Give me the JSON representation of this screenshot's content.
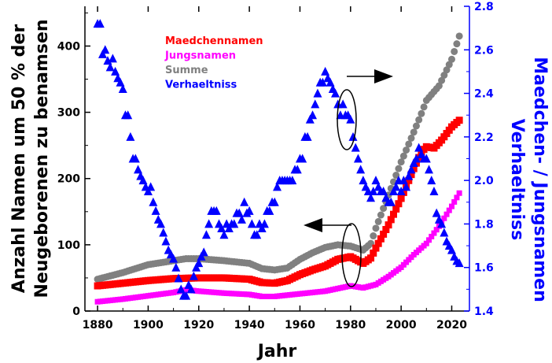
{
  "chart_data": {
    "type": "scatter",
    "xlabel": "Jahr",
    "ylabel_left": [
      "Anzahl Namen um 50 % der",
      "Neugeborenen zu benamsen"
    ],
    "ylabel_right": [
      "Verhaeltniss",
      "Maedchen- / Jungsnamen"
    ],
    "xlim": [
      1875,
      2027
    ],
    "ylim_left": [
      0,
      460
    ],
    "ylim_right": [
      1.4,
      2.8
    ],
    "xticks": [
      "1880",
      "1900",
      "1920",
      "1940",
      "1960",
      "1980",
      "2000",
      "2020"
    ],
    "yticks_left": [
      "0",
      "100",
      "200",
      "300",
      "400"
    ],
    "yticks_right": [
      "1.4",
      "1.6",
      "1.8",
      "2.0",
      "2.2",
      "2.4",
      "2.6",
      "2.8"
    ],
    "legend_position": "top-left",
    "grid": false,
    "series": [
      {
        "name": "Maedchennamen",
        "color": "#ff0000",
        "marker": "square",
        "axis": "left",
        "points": [
          [
            1880,
            38
          ],
          [
            1890,
            42
          ],
          [
            1900,
            46
          ],
          [
            1910,
            49
          ],
          [
            1920,
            50
          ],
          [
            1930,
            50
          ],
          [
            1940,
            48
          ],
          [
            1945,
            43
          ],
          [
            1950,
            42
          ],
          [
            1955,
            46
          ],
          [
            1960,
            55
          ],
          [
            1965,
            62
          ],
          [
            1970,
            68
          ],
          [
            1975,
            78
          ],
          [
            1980,
            82
          ],
          [
            1985,
            72
          ],
          [
            1988,
            80
          ],
          [
            1990,
            95
          ],
          [
            1995,
            130
          ],
          [
            2000,
            170
          ],
          [
            2005,
            215
          ],
          [
            2008,
            240
          ],
          [
            2010,
            248
          ],
          [
            2013,
            246
          ],
          [
            2016,
            258
          ],
          [
            2020,
            278
          ],
          [
            2023,
            288
          ]
        ]
      },
      {
        "name": "Jungsnamen",
        "color": "#ff00ff",
        "marker": "square",
        "axis": "left",
        "points": [
          [
            1880,
            14
          ],
          [
            1890,
            18
          ],
          [
            1900,
            23
          ],
          [
            1910,
            28
          ],
          [
            1915,
            32
          ],
          [
            1920,
            30
          ],
          [
            1930,
            27
          ],
          [
            1940,
            25
          ],
          [
            1945,
            22
          ],
          [
            1950,
            22
          ],
          [
            1960,
            26
          ],
          [
            1970,
            30
          ],
          [
            1975,
            34
          ],
          [
            1980,
            38
          ],
          [
            1985,
            35
          ],
          [
            1990,
            40
          ],
          [
            1995,
            52
          ],
          [
            2000,
            66
          ],
          [
            2005,
            85
          ],
          [
            2010,
            102
          ],
          [
            2015,
            128
          ],
          [
            2020,
            158
          ],
          [
            2023,
            178
          ]
        ]
      },
      {
        "name": "Summe",
        "color": "#808080",
        "marker": "circle",
        "axis": "left",
        "points": [
          [
            1880,
            48
          ],
          [
            1890,
            58
          ],
          [
            1900,
            70
          ],
          [
            1910,
            76
          ],
          [
            1915,
            79
          ],
          [
            1920,
            79
          ],
          [
            1930,
            76
          ],
          [
            1940,
            72
          ],
          [
            1945,
            64
          ],
          [
            1950,
            62
          ],
          [
            1955,
            65
          ],
          [
            1960,
            78
          ],
          [
            1965,
            88
          ],
          [
            1970,
            96
          ],
          [
            1975,
            100
          ],
          [
            1980,
            98
          ],
          [
            1985,
            92
          ],
          [
            1988,
            102
          ],
          [
            1990,
            125
          ],
          [
            1995,
            175
          ],
          [
            2000,
            225
          ],
          [
            2005,
            270
          ],
          [
            2008,
            298
          ],
          [
            2010,
            318
          ],
          [
            2015,
            340
          ],
          [
            2020,
            380
          ],
          [
            2023,
            415
          ]
        ]
      },
      {
        "name": "Verhaeltniss",
        "color": "#0000ff",
        "marker": "triangle",
        "axis": "right",
        "points": [
          [
            1880,
            2.72
          ],
          [
            1881,
            2.72
          ],
          [
            1882,
            2.58
          ],
          [
            1883,
            2.6
          ],
          [
            1884,
            2.55
          ],
          [
            1885,
            2.52
          ],
          [
            1886,
            2.56
          ],
          [
            1887,
            2.5
          ],
          [
            1888,
            2.47
          ],
          [
            1889,
            2.45
          ],
          [
            1890,
            2.42
          ],
          [
            1891,
            2.3
          ],
          [
            1892,
            2.3
          ],
          [
            1893,
            2.2
          ],
          [
            1894,
            2.1
          ],
          [
            1895,
            2.1
          ],
          [
            1896,
            2.05
          ],
          [
            1897,
            2.02
          ],
          [
            1898,
            2.0
          ],
          [
            1899,
            1.97
          ],
          [
            1900,
            1.95
          ],
          [
            1901,
            1.97
          ],
          [
            1902,
            1.9
          ],
          [
            1903,
            1.86
          ],
          [
            1904,
            1.82
          ],
          [
            1905,
            1.8
          ],
          [
            1906,
            1.76
          ],
          [
            1907,
            1.72
          ],
          [
            1908,
            1.68
          ],
          [
            1909,
            1.66
          ],
          [
            1910,
            1.64
          ],
          [
            1911,
            1.6
          ],
          [
            1912,
            1.55
          ],
          [
            1913,
            1.5
          ],
          [
            1914,
            1.47
          ],
          [
            1915,
            1.47
          ],
          [
            1916,
            1.52
          ],
          [
            1917,
            1.5
          ],
          [
            1918,
            1.56
          ],
          [
            1919,
            1.6
          ],
          [
            1920,
            1.62
          ],
          [
            1921,
            1.65
          ],
          [
            1922,
            1.67
          ],
          [
            1923,
            1.75
          ],
          [
            1924,
            1.8
          ],
          [
            1925,
            1.86
          ],
          [
            1926,
            1.86
          ],
          [
            1927,
            1.86
          ],
          [
            1928,
            1.8
          ],
          [
            1929,
            1.78
          ],
          [
            1930,
            1.75
          ],
          [
            1931,
            1.8
          ],
          [
            1932,
            1.78
          ],
          [
            1933,
            1.8
          ],
          [
            1934,
            1.8
          ],
          [
            1935,
            1.85
          ],
          [
            1936,
            1.85
          ],
          [
            1937,
            1.82
          ],
          [
            1938,
            1.9
          ],
          [
            1939,
            1.85
          ],
          [
            1940,
            1.86
          ],
          [
            1941,
            1.8
          ],
          [
            1942,
            1.75
          ],
          [
            1943,
            1.75
          ],
          [
            1944,
            1.8
          ],
          [
            1945,
            1.78
          ],
          [
            1946,
            1.8
          ],
          [
            1947,
            1.86
          ],
          [
            1948,
            1.86
          ],
          [
            1949,
            1.9
          ],
          [
            1950,
            1.9
          ],
          [
            1951,
            1.97
          ],
          [
            1952,
            2.0
          ],
          [
            1953,
            2.0
          ],
          [
            1954,
            2.0
          ],
          [
            1955,
            2.0
          ],
          [
            1956,
            2.0
          ],
          [
            1957,
            2.0
          ],
          [
            1958,
            2.05
          ],
          [
            1959,
            2.05
          ],
          [
            1960,
            2.1
          ],
          [
            1961,
            2.1
          ],
          [
            1962,
            2.2
          ],
          [
            1963,
            2.2
          ],
          [
            1964,
            2.28
          ],
          [
            1965,
            2.3
          ],
          [
            1966,
            2.35
          ],
          [
            1967,
            2.4
          ],
          [
            1968,
            2.45
          ],
          [
            1969,
            2.45
          ],
          [
            1970,
            2.5
          ],
          [
            1971,
            2.47
          ],
          [
            1972,
            2.45
          ],
          [
            1973,
            2.42
          ],
          [
            1974,
            2.4
          ],
          [
            1975,
            2.35
          ],
          [
            1976,
            2.3
          ],
          [
            1977,
            2.35
          ],
          [
            1978,
            2.3
          ],
          [
            1979,
            2.3
          ],
          [
            1980,
            2.28
          ],
          [
            1981,
            2.2
          ],
          [
            1982,
            2.15
          ],
          [
            1983,
            2.1
          ],
          [
            1984,
            2.05
          ],
          [
            1985,
            2.0
          ],
          [
            1986,
            1.97
          ],
          [
            1987,
            1.95
          ],
          [
            1988,
            1.92
          ],
          [
            1989,
            1.95
          ],
          [
            1990,
            2.0
          ],
          [
            1991,
            1.97
          ],
          [
            1992,
            1.95
          ],
          [
            1993,
            1.95
          ],
          [
            1994,
            1.92
          ],
          [
            1995,
            1.9
          ],
          [
            1996,
            1.9
          ],
          [
            1997,
            1.95
          ],
          [
            1998,
            1.97
          ],
          [
            1999,
            2.0
          ],
          [
            2000,
            1.95
          ],
          [
            2001,
            2.0
          ],
          [
            2002,
            1.97
          ],
          [
            2003,
            2.02
          ],
          [
            2004,
            2.05
          ],
          [
            2005,
            2.08
          ],
          [
            2006,
            2.1
          ],
          [
            2007,
            2.15
          ],
          [
            2008,
            2.12
          ],
          [
            2009,
            2.1
          ],
          [
            2010,
            2.1
          ],
          [
            2011,
            2.05
          ],
          [
            2012,
            2.0
          ],
          [
            2013,
            1.95
          ],
          [
            2014,
            1.85
          ],
          [
            2015,
            1.82
          ],
          [
            2016,
            1.8
          ],
          [
            2017,
            1.76
          ],
          [
            2018,
            1.72
          ],
          [
            2019,
            1.7
          ],
          [
            2020,
            1.68
          ],
          [
            2021,
            1.65
          ],
          [
            2022,
            1.63
          ],
          [
            2023,
            1.62
          ]
        ]
      }
    ]
  }
}
